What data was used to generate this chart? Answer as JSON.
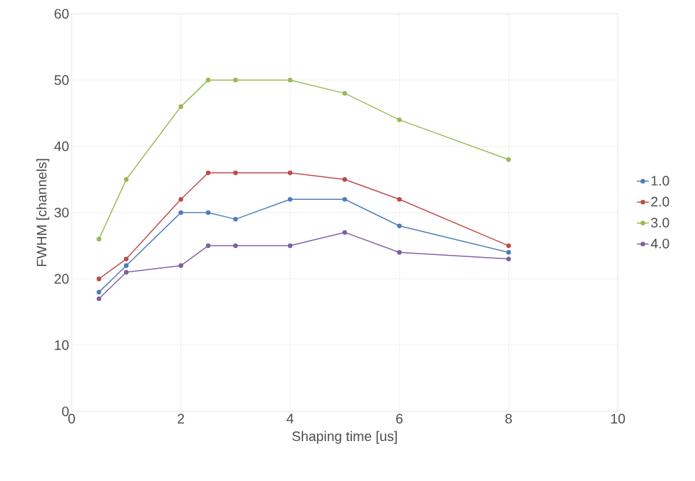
{
  "chart_data": {
    "type": "line",
    "xlabel": "Shaping time [us]",
    "ylabel": "FWHM [channels]",
    "x": [
      0.5,
      1,
      2,
      2.5,
      3,
      4,
      5,
      6,
      8
    ],
    "series": [
      {
        "name": "1.0",
        "color": "#4a7ebb",
        "values": [
          18,
          22,
          30,
          30,
          29,
          32,
          32,
          28,
          24
        ]
      },
      {
        "name": "2.0",
        "color": "#be4b48",
        "values": [
          20,
          23,
          32,
          36,
          36,
          36,
          35,
          32,
          25
        ]
      },
      {
        "name": "3.0",
        "color": "#98b954",
        "values": [
          26,
          35,
          46,
          50,
          50,
          50,
          48,
          44,
          38
        ]
      },
      {
        "name": "4.0",
        "color": "#7d60a0",
        "values": [
          17,
          21,
          22,
          25,
          25,
          25,
          27,
          24,
          23
        ]
      }
    ],
    "xlim": [
      0,
      10
    ],
    "ylim": [
      0,
      60
    ],
    "xticks": [
      0,
      2,
      4,
      6,
      8,
      10
    ],
    "yticks": [
      0,
      10,
      20,
      30,
      40,
      50,
      60
    ],
    "grid": true,
    "legend": "right",
    "marker": "circle",
    "line_style": "solid"
  }
}
